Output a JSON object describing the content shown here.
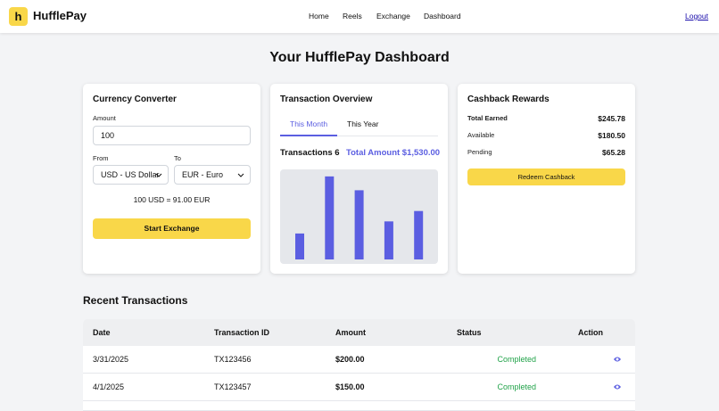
{
  "header": {
    "logo": "h",
    "brand": "HufflePay",
    "nav": [
      "Home",
      "Reels",
      "Exchange",
      "Dashboard"
    ],
    "logout": "Logout"
  },
  "title": "Your HufflePay Dashboard",
  "converter": {
    "title": "Currency Converter",
    "amount_label": "Amount",
    "amount": "100",
    "from_label": "From",
    "to_label": "To",
    "from": "USD - US Dollar",
    "to": "EUR - Euro",
    "result": "100 USD = 91.00 EUR",
    "button": "Start Exchange"
  },
  "overview": {
    "title": "Transaction Overview",
    "tabs": [
      "This Month",
      "This Year"
    ],
    "count_label": "Transactions",
    "count": "6",
    "total_label": "Total Amount",
    "total": "$1,530.00"
  },
  "chart_data": {
    "type": "bar",
    "values": [
      30,
      96,
      80,
      44,
      56
    ],
    "ylim": [
      0,
      100
    ],
    "color": "#5b5ee1"
  },
  "cashback": {
    "title": "Cashback Rewards",
    "rows": [
      [
        "Total Earned",
        "$245.78"
      ],
      [
        "Available",
        "$180.50"
      ],
      [
        "Pending",
        "$65.28"
      ]
    ],
    "button": "Redeem Cashback"
  },
  "transactions": {
    "title": "Recent Transactions",
    "columns": [
      "Date",
      "Transaction ID",
      "Amount",
      "Status",
      "Action"
    ],
    "rows": [
      [
        "3/31/2025",
        "TX123456",
        "$200.00",
        "Completed"
      ],
      [
        "4/1/2025",
        "TX123457",
        "$150.00",
        "Completed"
      ]
    ]
  }
}
